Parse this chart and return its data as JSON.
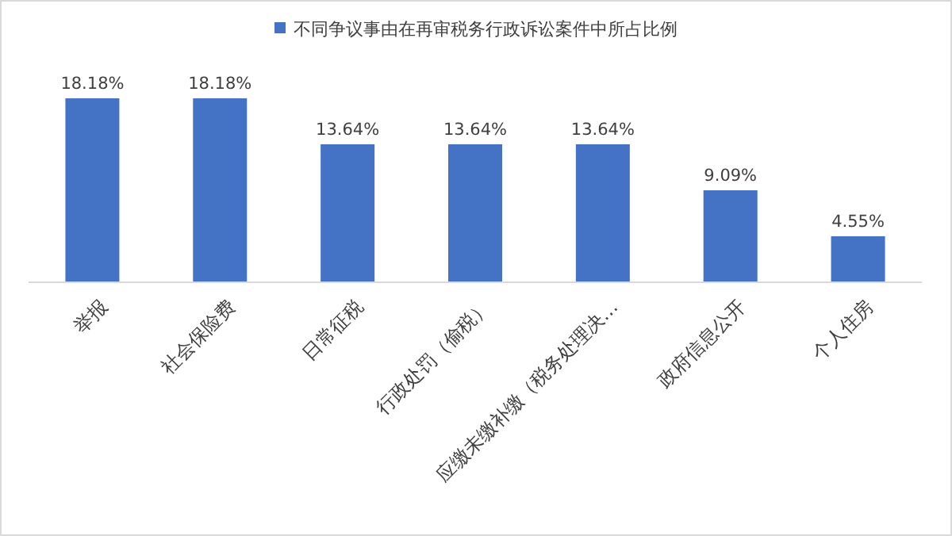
{
  "chart_data": {
    "type": "bar",
    "categories": [
      "举报",
      "社会保险费",
      "日常征税",
      "行政处罚（偷税）",
      "应缴未缴补缴（税务处理决…",
      "政府信息公开",
      "个人住房"
    ],
    "series": [
      {
        "name": "不同争议事由在再审税务行政诉讼案件中所占比例",
        "color": "#4472c4",
        "values": [
          18.18,
          18.18,
          13.64,
          13.64,
          13.64,
          9.09,
          4.55
        ],
        "value_labels": [
          "18.18%",
          "18.18%",
          "13.64%",
          "13.64%",
          "13.64%",
          "9.09%",
          "4.55%"
        ]
      }
    ],
    "legend": "top"
  }
}
